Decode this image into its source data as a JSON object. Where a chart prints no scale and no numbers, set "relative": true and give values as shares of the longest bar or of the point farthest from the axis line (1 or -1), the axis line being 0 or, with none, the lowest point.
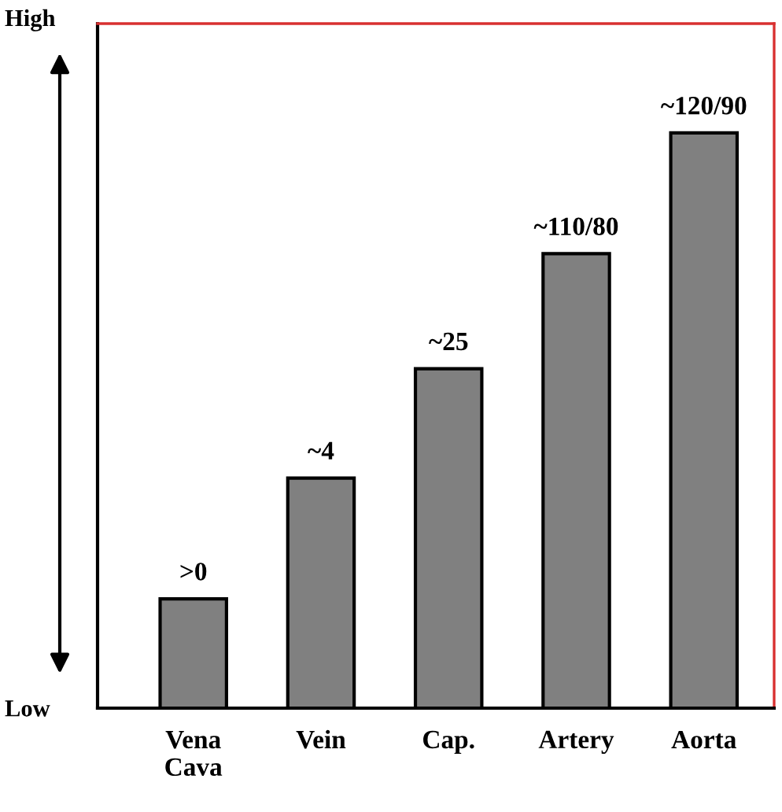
{
  "chart_data": {
    "type": "bar",
    "relative": true,
    "categories": [
      "Vena\nCava",
      "Vein",
      "Cap.",
      "Artery",
      "Aorta"
    ],
    "values": [
      0.19,
      0.4,
      0.59,
      0.79,
      1.0
    ],
    "color": "#808080",
    "annotations": [
      "High",
      "Low",
      {
        "text": ">0",
        "x": "Vena\nCava",
        "y": 0.19
      },
      {
        "text": "~4",
        "x": "Vein",
        "y": 0.4
      },
      {
        "text": "~25",
        "x": "Cap.",
        "y": 0.59
      },
      {
        "text": "~110/80",
        "x": "Artery",
        "y": 0.79
      },
      {
        "text": "~120/90",
        "x": "Aorta",
        "y": 1.0
      }
    ],
    "grid": false
  }
}
